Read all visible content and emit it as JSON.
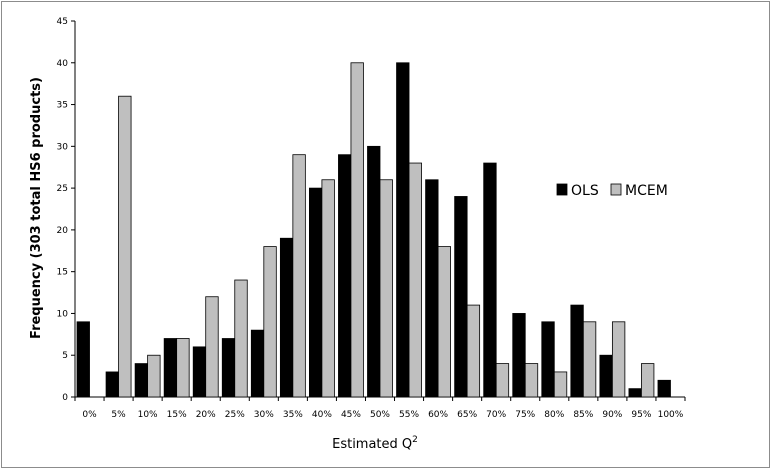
{
  "chart_data": {
    "type": "bar",
    "title": "",
    "xlabel": "Estimated Q",
    "xlabel_superscript": "2",
    "ylabel": "Frequency (303 total HS6 products)",
    "ylim": [
      0,
      45
    ],
    "yticks": [
      0,
      5,
      10,
      15,
      20,
      25,
      30,
      35,
      40,
      45
    ],
    "grid": false,
    "legend_position": "right",
    "categories": [
      "0%",
      "5%",
      "10%",
      "15%",
      "20%",
      "25%",
      "30%",
      "35%",
      "40%",
      "45%",
      "50%",
      "55%",
      "60%",
      "65%",
      "70%",
      "75%",
      "80%",
      "85%",
      "90%",
      "95%",
      "100%"
    ],
    "series": [
      {
        "name": "OLS",
        "color": "#000000",
        "values": [
          9,
          3,
          4,
          7,
          6,
          7,
          8,
          19,
          25,
          29,
          30,
          40,
          26,
          24,
          28,
          10,
          9,
          11,
          5,
          1,
          2
        ]
      },
      {
        "name": "MCEM",
        "color": "#bfbfbf",
        "values": [
          0,
          36,
          5,
          7,
          12,
          14,
          18,
          29,
          26,
          40,
          26,
          28,
          18,
          11,
          4,
          4,
          3,
          9,
          9,
          4,
          0
        ]
      }
    ]
  }
}
